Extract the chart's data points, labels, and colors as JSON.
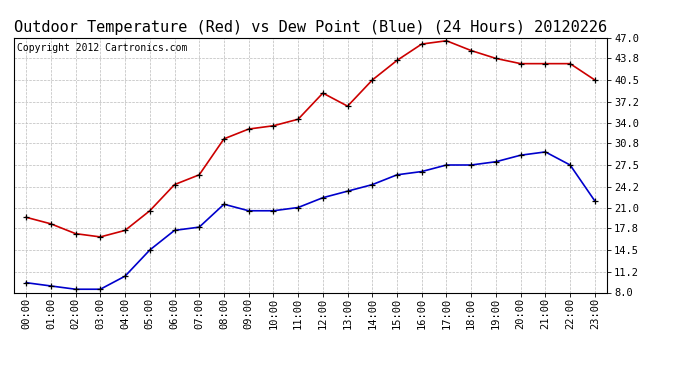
{
  "title": "Outdoor Temperature (Red) vs Dew Point (Blue) (24 Hours) 20120226",
  "copyright_text": "Copyright 2012 Cartronics.com",
  "hours": [
    "00:00",
    "01:00",
    "02:00",
    "03:00",
    "04:00",
    "05:00",
    "06:00",
    "07:00",
    "08:00",
    "09:00",
    "10:00",
    "11:00",
    "12:00",
    "13:00",
    "14:00",
    "15:00",
    "16:00",
    "17:00",
    "18:00",
    "19:00",
    "20:00",
    "21:00",
    "22:00",
    "23:00"
  ],
  "temp_red": [
    19.5,
    18.5,
    17.0,
    16.5,
    17.5,
    20.5,
    24.5,
    26.0,
    31.5,
    33.0,
    33.5,
    34.5,
    38.5,
    36.5,
    40.5,
    43.5,
    46.0,
    46.5,
    45.0,
    43.8,
    43.0,
    43.0,
    43.0,
    40.5
  ],
  "dew_blue": [
    9.5,
    9.0,
    8.5,
    8.5,
    10.5,
    14.5,
    17.5,
    18.0,
    21.5,
    20.5,
    20.5,
    21.0,
    22.5,
    23.5,
    24.5,
    26.0,
    26.5,
    27.5,
    27.5,
    28.0,
    29.0,
    29.5,
    27.5,
    22.0
  ],
  "ylim_min": 8.0,
  "ylim_max": 47.0,
  "yticks": [
    8.0,
    11.2,
    14.5,
    17.8,
    21.0,
    24.2,
    27.5,
    30.8,
    34.0,
    37.2,
    40.5,
    43.8,
    47.0
  ],
  "ytick_labels": [
    "8.0",
    "11.2",
    "14.5",
    "17.8",
    "21.0",
    "24.2",
    "27.5",
    "30.8",
    "34.0",
    "37.2",
    "40.5",
    "43.8",
    "47.0"
  ],
  "red_color": "#cc0000",
  "blue_color": "#0000cc",
  "bg_color": "#ffffff",
  "grid_color": "#bbbbbb",
  "title_fontsize": 11,
  "copyright_fontsize": 7,
  "tick_fontsize": 7.5
}
